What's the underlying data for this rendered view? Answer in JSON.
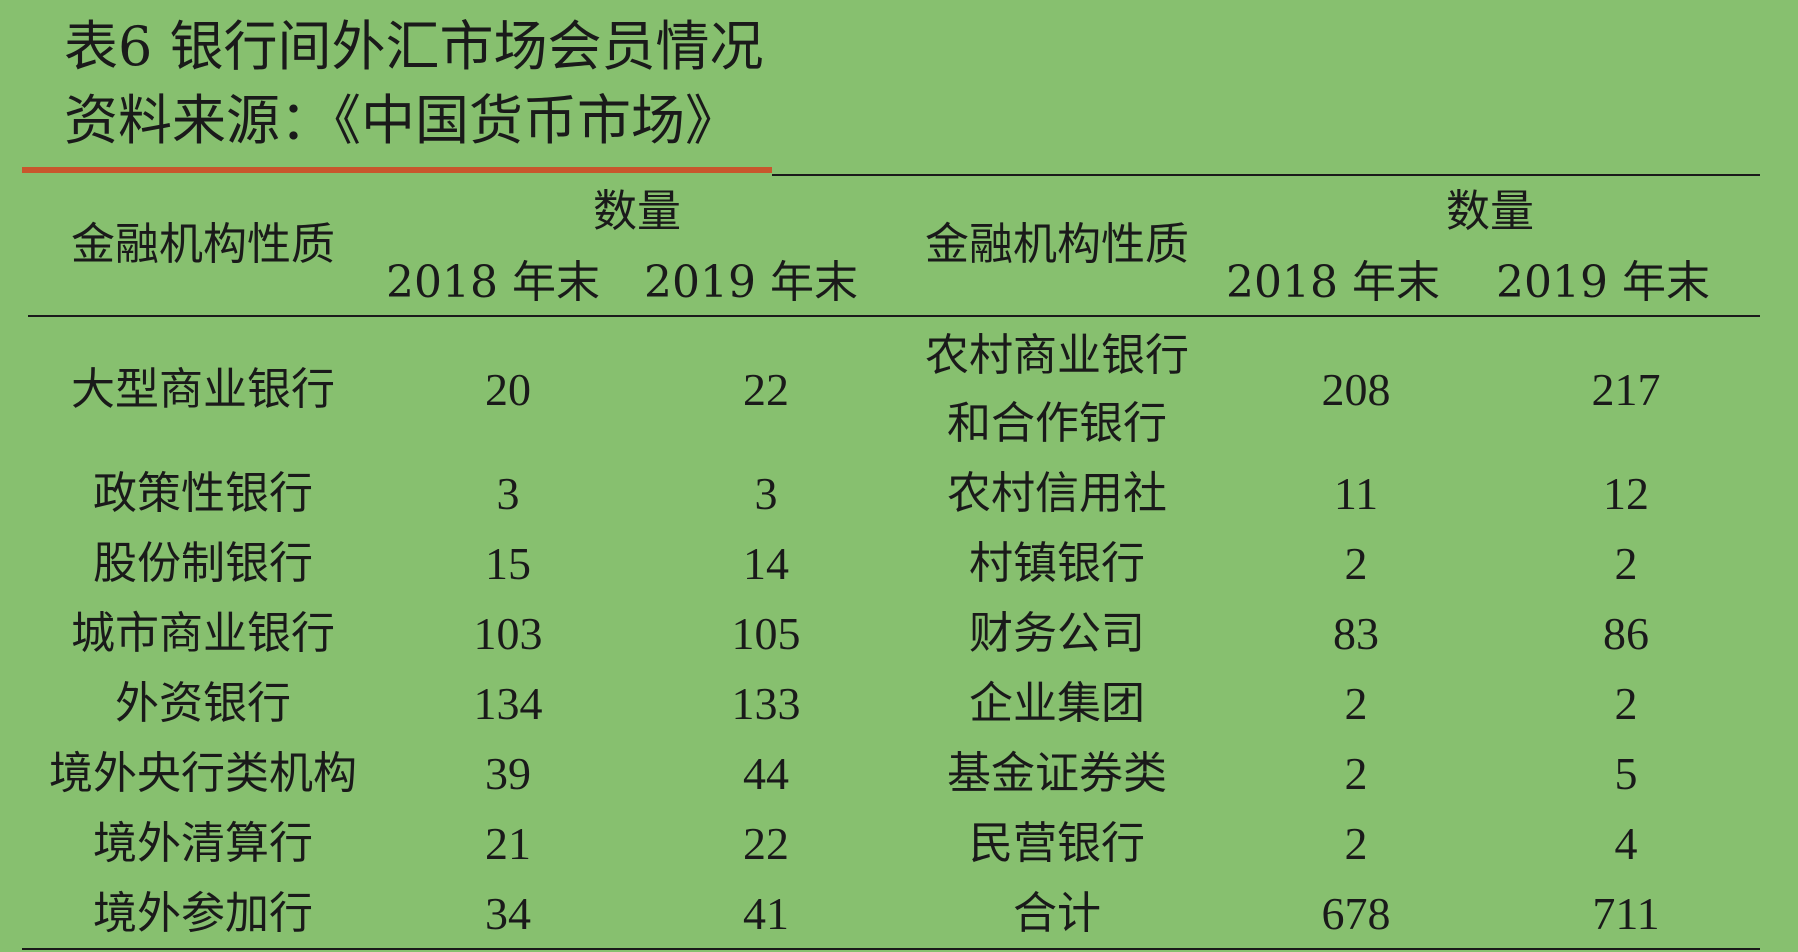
{
  "title": "表6 银行间外汇市场会员情况",
  "source": "资料来源：《中国货币市场》",
  "headers": {
    "category": "金融机构性质",
    "quantity": "数量",
    "year_2018": "2018 年末",
    "year_2019": "2019 年末"
  },
  "left_rows": [
    {
      "name": "大型商业银行",
      "v2018": "20",
      "v2019": "22"
    },
    {
      "name": "政策性银行",
      "v2018": "3",
      "v2019": "3"
    },
    {
      "name": "股份制银行",
      "v2018": "15",
      "v2019": "14"
    },
    {
      "name": "城市商业银行",
      "v2018": "103",
      "v2019": "105"
    },
    {
      "name": "外资银行",
      "v2018": "134",
      "v2019": "133"
    },
    {
      "name": "境外央行类机构",
      "v2018": "39",
      "v2019": "44"
    },
    {
      "name": "境外清算行",
      "v2018": "21",
      "v2019": "22"
    },
    {
      "name": "境外参加行",
      "v2018": "34",
      "v2019": "41"
    }
  ],
  "right_rows": [
    {
      "name_line1": "农村商业银行",
      "name_line2": "和合作银行",
      "v2018": "208",
      "v2019": "217"
    },
    {
      "name": "农村信用社",
      "v2018": "11",
      "v2019": "12"
    },
    {
      "name": "村镇银行",
      "v2018": "2",
      "v2019": "2"
    },
    {
      "name": "财务公司",
      "v2018": "83",
      "v2019": "86"
    },
    {
      "name": "企业集团",
      "v2018": "2",
      "v2019": "2"
    },
    {
      "name": "基金证券类",
      "v2018": "2",
      "v2019": "5"
    },
    {
      "name": "民营银行",
      "v2018": "2",
      "v2019": "4"
    },
    {
      "name": "合计",
      "v2018": "678",
      "v2019": "711"
    }
  ]
}
